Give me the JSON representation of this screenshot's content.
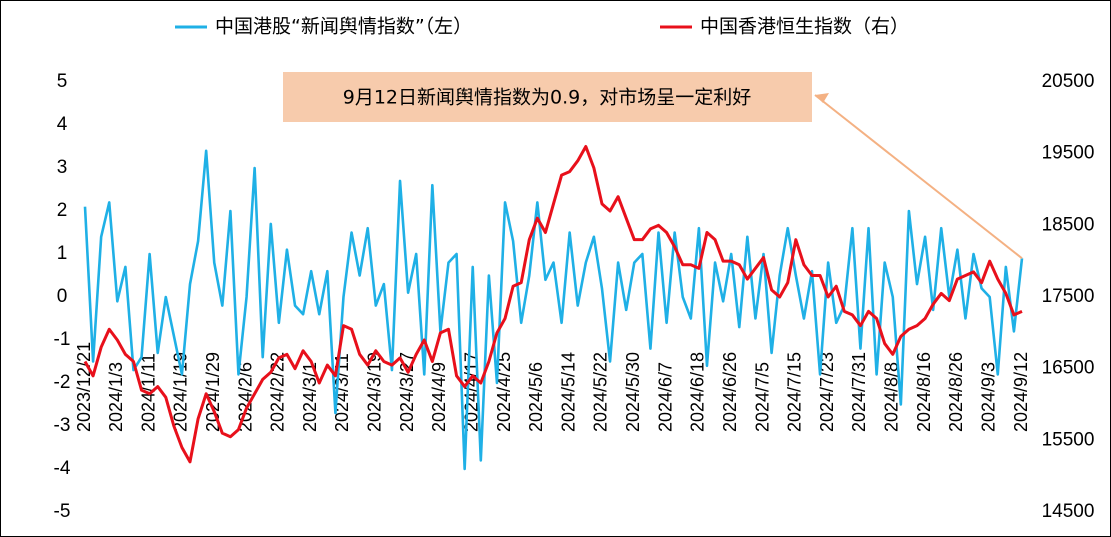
{
  "chart_data": {
    "type": "line",
    "annotation": "9月12日新闻舆情指数为0.9，对市场呈一定利好",
    "categories": [
      "2023/12/21",
      null,
      null,
      null,
      "2024/1/3",
      null,
      null,
      null,
      "2024/1/11",
      null,
      null,
      null,
      "2024/1/19",
      null,
      null,
      null,
      "2024/1/29",
      null,
      null,
      null,
      "2024/2/6",
      null,
      null,
      null,
      "2024/2/22",
      null,
      null,
      null,
      "2024/3/1",
      null,
      null,
      null,
      "2024/3/11",
      null,
      null,
      null,
      "2024/3/19",
      null,
      null,
      null,
      "2024/3/27",
      null,
      null,
      null,
      "2024/4/9",
      null,
      null,
      null,
      "2024/4/17",
      null,
      null,
      null,
      "2024/4/25",
      null,
      null,
      null,
      "2024/5/6",
      null,
      null,
      null,
      "2024/5/14",
      null,
      null,
      null,
      "2024/5/22",
      null,
      null,
      null,
      "2024/5/30",
      null,
      null,
      null,
      "2024/6/7",
      null,
      null,
      null,
      "2024/6/18",
      null,
      null,
      null,
      "2024/6/26",
      null,
      null,
      null,
      "2024/7/5",
      null,
      null,
      null,
      "2024/7/15",
      null,
      null,
      null,
      "2024/7/23",
      null,
      null,
      null,
      "2024/7/31",
      null,
      null,
      null,
      "2024/8/8",
      null,
      null,
      null,
      "2024/8/16",
      null,
      null,
      null,
      "2024/8/26",
      null,
      null,
      null,
      "2024/9/3",
      null,
      null,
      null,
      "2024/9/12"
    ],
    "series": [
      {
        "name": "中国港股“新闻舆情指数”（左）",
        "color": "#1fb0e6",
        "values": [
          2.1,
          -1.5,
          1.4,
          2.2,
          -0.1,
          0.7,
          -1.7,
          -1.4,
          1.0,
          -1.3,
          0.0,
          -0.9,
          -1.8,
          0.3,
          1.3,
          3.4,
          0.8,
          -0.2,
          2.0,
          -1.8,
          0.0,
          3.0,
          -1.4,
          1.7,
          -0.6,
          1.1,
          -0.2,
          -0.4,
          0.6,
          -0.4,
          0.6,
          -2.7,
          0.0,
          1.5,
          0.5,
          1.6,
          -0.2,
          0.3,
          -1.7,
          2.7,
          0.1,
          1.0,
          -1.8,
          2.6,
          -0.8,
          0.8,
          1.0,
          -4.0,
          0.7,
          -3.8,
          0.5,
          -2.0,
          2.2,
          1.3,
          -0.6,
          0.5,
          2.2,
          0.4,
          0.8,
          -0.6,
          1.5,
          -0.2,
          0.8,
          1.4,
          0.2,
          -1.5,
          0.8,
          -0.3,
          0.8,
          1.0,
          -1.2,
          1.5,
          -0.6,
          1.5,
          0.0,
          -0.5,
          1.6,
          -1.6,
          0.8,
          -0.1,
          1.0,
          -0.7,
          1.4,
          -0.5,
          1.0,
          -1.3,
          0.5,
          1.6,
          0.5,
          -0.5,
          0.6,
          -1.8,
          0.8,
          -0.6,
          -0.2,
          1.6,
          -1.2,
          1.6,
          -1.8,
          0.8,
          0.0,
          -2.5,
          2.0,
          0.3,
          1.4,
          -0.3,
          1.6,
          0.0,
          1.1,
          -0.5,
          1.0,
          0.2,
          0.0,
          -1.8,
          0.7,
          -0.8,
          0.9
        ]
      },
      {
        "name": "中国香港恒生指数（右）",
        "color": "#e8101b",
        "axis": "y2",
        "values": [
          16600,
          16400,
          16800,
          17050,
          16900,
          16700,
          16600,
          16200,
          16150,
          16250,
          16100,
          15700,
          15400,
          15200,
          15800,
          16150,
          15900,
          15600,
          15550,
          15650,
          15950,
          16150,
          16350,
          16450,
          16650,
          16700,
          16500,
          16750,
          16600,
          16300,
          16550,
          16400,
          17100,
          17050,
          16700,
          16550,
          16750,
          16600,
          16550,
          16650,
          16450,
          16700,
          16900,
          16600,
          17000,
          17050,
          16400,
          16250,
          16400,
          16300,
          16600,
          17000,
          17200,
          17650,
          17700,
          18300,
          18600,
          18400,
          18800,
          19200,
          19250,
          19400,
          19600,
          19300,
          18800,
          18700,
          18900,
          18600,
          18300,
          18300,
          18450,
          18500,
          18400,
          18200,
          17950,
          17950,
          17900,
          18400,
          18300,
          18000,
          18000,
          17950,
          17750,
          17900,
          18050,
          17600,
          17500,
          17700,
          18300,
          17950,
          17800,
          17800,
          17500,
          17650,
          17300,
          17250,
          17100,
          17300,
          17200,
          16850,
          16700,
          16950,
          17050,
          17100,
          17200,
          17400,
          17550,
          17450,
          17750,
          17800,
          17850,
          17700,
          18000,
          17750,
          17550,
          17250,
          17300
        ]
      }
    ],
    "ylim": [
      -5,
      5
    ],
    "yticks": [
      -5,
      -4,
      -3,
      -2,
      -1,
      0,
      1,
      2,
      3,
      4,
      5
    ],
    "y2lim": [
      14500,
      20500
    ],
    "y2ticks": [
      14500,
      15500,
      16500,
      17500,
      18500,
      19500,
      20500
    ],
    "grid": false,
    "legend": "top"
  }
}
